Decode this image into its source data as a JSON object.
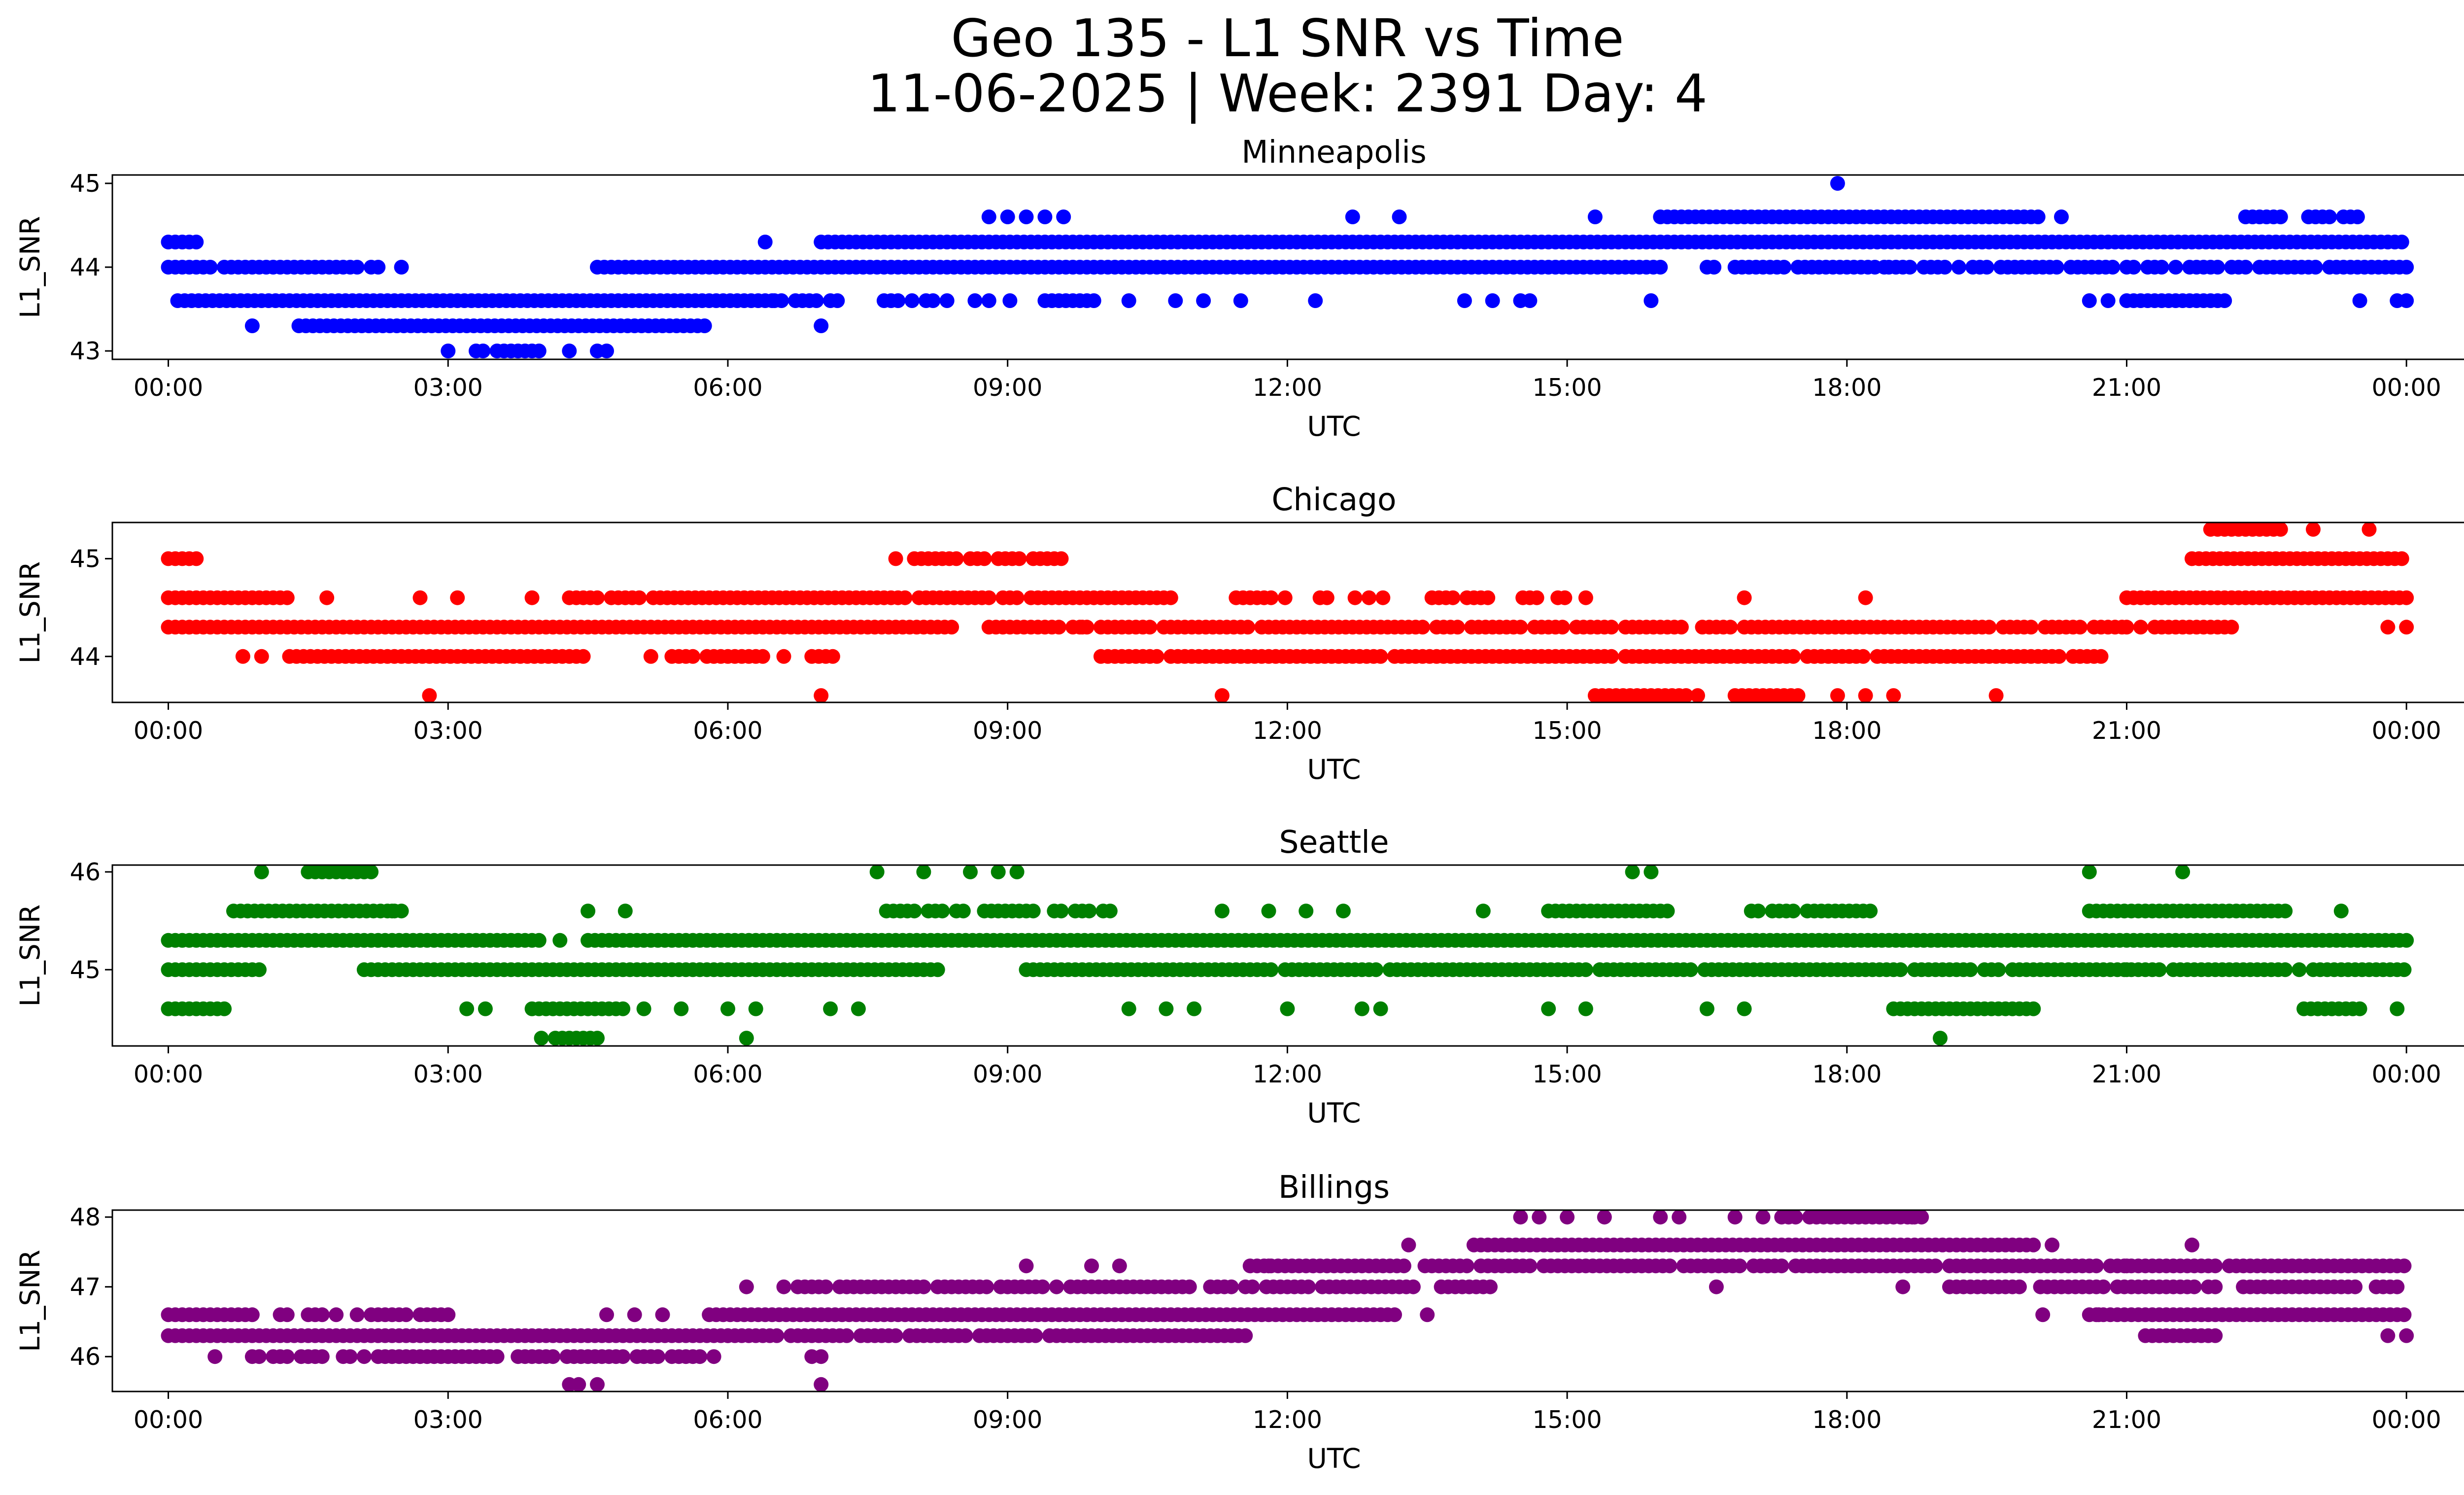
{
  "figure": {
    "title_line1": "Geo 135 - L1 SNR vs Time",
    "title_line2": "11-06-2025 | Week: 2391 Day: 4"
  },
  "chart_data": [
    {
      "type": "scatter",
      "title": "Minneapolis",
      "color": "#0000ff",
      "xlabel": "UTC",
      "ylabel": "L1_SNR",
      "xlim_hours": [
        -0.6,
        25.6
      ],
      "ylim": [
        42.9,
        45.1
      ],
      "xticks": [
        "00:00",
        "03:00",
        "06:00",
        "09:00",
        "12:00",
        "15:00",
        "18:00",
        "21:00",
        "00:00"
      ],
      "yticks": [
        43,
        44,
        45
      ],
      "bands": [
        {
          "y": 44.3,
          "start": 0.0,
          "end": 0.3,
          "density": 1.0
        },
        {
          "y": 44.0,
          "start": 0.0,
          "end": 2.3,
          "density": 0.8
        },
        {
          "y": 43.6,
          "start": 0.1,
          "end": 6.5,
          "density": 1.0
        },
        {
          "y": 43.3,
          "start": 1.4,
          "end": 5.8,
          "density": 1.0
        },
        {
          "y": 44.0,
          "start": 4.6,
          "end": 16.0,
          "density": 1.0
        },
        {
          "y": 43.6,
          "start": 6.5,
          "end": 7.2,
          "density": 0.9
        },
        {
          "y": 44.3,
          "start": 7.0,
          "end": 24.0,
          "density": 1.0
        },
        {
          "y": 43.6,
          "start": 7.6,
          "end": 10.0,
          "density": 0.5
        },
        {
          "y": 44.0,
          "start": 16.5,
          "end": 24.0,
          "density": 0.85
        },
        {
          "y": 44.6,
          "start": 16.0,
          "end": 20.1,
          "density": 1.0
        },
        {
          "y": 44.6,
          "start": 22.2,
          "end": 23.6,
          "density": 0.75
        },
        {
          "y": 43.6,
          "start": 21.0,
          "end": 22.1,
          "density": 1.0
        },
        {
          "y": 43.0,
          "start": 3.3,
          "end": 4.0,
          "density": 0.9
        }
      ],
      "points": [
        [
          0.9,
          43.3
        ],
        [
          2.5,
          44.0
        ],
        [
          3.0,
          43.0
        ],
        [
          4.3,
          43.0
        ],
        [
          4.6,
          43.0
        ],
        [
          4.7,
          43.0
        ],
        [
          6.4,
          44.3
        ],
        [
          7.0,
          43.3
        ],
        [
          8.8,
          44.6
        ],
        [
          9.0,
          44.6
        ],
        [
          9.2,
          44.6
        ],
        [
          9.4,
          44.6
        ],
        [
          9.6,
          44.6
        ],
        [
          8.8,
          43.6
        ],
        [
          10.3,
          43.6
        ],
        [
          10.8,
          43.6
        ],
        [
          11.1,
          43.6
        ],
        [
          11.5,
          43.6
        ],
        [
          12.3,
          43.6
        ],
        [
          12.7,
          44.6
        ],
        [
          13.2,
          44.6
        ],
        [
          13.9,
          43.6
        ],
        [
          14.2,
          43.6
        ],
        [
          14.5,
          43.6
        ],
        [
          14.6,
          43.6
        ],
        [
          15.3,
          44.6
        ],
        [
          15.9,
          43.6
        ],
        [
          17.9,
          45.0
        ],
        [
          18.4,
          44.0
        ],
        [
          20.3,
          44.6
        ],
        [
          20.6,
          43.6
        ],
        [
          20.8,
          43.6
        ],
        [
          23.5,
          43.6
        ],
        [
          23.9,
          43.6
        ],
        [
          24.0,
          43.6
        ]
      ]
    },
    {
      "type": "scatter",
      "title": "Chicago",
      "color": "#ff0000",
      "xlabel": "UTC",
      "ylabel": "L1_SNR",
      "xlim_hours": [
        -0.6,
        25.6
      ],
      "ylim": [
        43.53,
        45.37
      ],
      "xticks": [
        "00:00",
        "03:00",
        "06:00",
        "09:00",
        "12:00",
        "15:00",
        "18:00",
        "21:00",
        "00:00"
      ],
      "yticks": [
        44,
        45
      ],
      "bands": [
        {
          "y": 45.0,
          "start": 0.0,
          "end": 0.3,
          "density": 1.0
        },
        {
          "y": 44.6,
          "start": 0.0,
          "end": 1.3,
          "density": 1.0
        },
        {
          "y": 44.3,
          "start": 0.0,
          "end": 8.4,
          "density": 1.0
        },
        {
          "y": 44.0,
          "start": 1.3,
          "end": 4.5,
          "density": 1.0
        },
        {
          "y": 44.6,
          "start": 4.3,
          "end": 10.8,
          "density": 0.9
        },
        {
          "y": 44.0,
          "start": 5.1,
          "end": 7.3,
          "density": 0.7
        },
        {
          "y": 45.0,
          "start": 8.0,
          "end": 9.6,
          "density": 0.9
        },
        {
          "y": 44.3,
          "start": 8.8,
          "end": 21.0,
          "density": 0.9
        },
        {
          "y": 44.0,
          "start": 10.0,
          "end": 20.8,
          "density": 0.95
        },
        {
          "y": 44.6,
          "start": 11.3,
          "end": 15.2,
          "density": 0.6
        },
        {
          "y": 43.6,
          "start": 15.3,
          "end": 16.3,
          "density": 1.0
        },
        {
          "y": 43.6,
          "start": 16.8,
          "end": 17.5,
          "density": 1.0
        },
        {
          "y": 44.6,
          "start": 21.0,
          "end": 24.0,
          "density": 1.0
        },
        {
          "y": 45.0,
          "start": 21.7,
          "end": 24.0,
          "density": 1.0
        },
        {
          "y": 45.3,
          "start": 21.9,
          "end": 22.7,
          "density": 1.0
        },
        {
          "y": 44.3,
          "start": 21.0,
          "end": 22.2,
          "density": 0.9
        }
      ],
      "points": [
        [
          0.8,
          44.0
        ],
        [
          1.0,
          44.0
        ],
        [
          1.7,
          44.6
        ],
        [
          2.7,
          44.6
        ],
        [
          2.8,
          43.6
        ],
        [
          3.1,
          44.6
        ],
        [
          3.9,
          44.6
        ],
        [
          7.0,
          43.6
        ],
        [
          7.8,
          45.0
        ],
        [
          9.8,
          44.3
        ],
        [
          11.3,
          43.6
        ],
        [
          16.4,
          43.6
        ],
        [
          16.9,
          44.6
        ],
        [
          17.9,
          43.6
        ],
        [
          18.2,
          43.6
        ],
        [
          18.5,
          43.6
        ],
        [
          18.2,
          44.6
        ],
        [
          19.6,
          43.6
        ],
        [
          23.0,
          45.3
        ],
        [
          23.6,
          45.3
        ],
        [
          23.8,
          44.3
        ],
        [
          24.0,
          44.3
        ]
      ]
    },
    {
      "type": "scatter",
      "title": "Seattle",
      "color": "#008000",
      "xlabel": "UTC",
      "ylabel": "L1_SNR",
      "xlim_hours": [
        -0.6,
        25.6
      ],
      "ylim": [
        44.22,
        46.07
      ],
      "xticks": [
        "00:00",
        "03:00",
        "06:00",
        "09:00",
        "12:00",
        "15:00",
        "18:00",
        "21:00",
        "00:00"
      ],
      "yticks": [
        45,
        46
      ],
      "bands": [
        {
          "y": 45.3,
          "start": 0.0,
          "end": 4.0,
          "density": 1.0
        },
        {
          "y": 45.0,
          "start": 0.0,
          "end": 1.0,
          "density": 1.0
        },
        {
          "y": 44.6,
          "start": 0.0,
          "end": 0.6,
          "density": 1.0
        },
        {
          "y": 45.6,
          "start": 0.7,
          "end": 2.5,
          "density": 1.0
        },
        {
          "y": 46.0,
          "start": 1.5,
          "end": 2.2,
          "density": 1.0
        },
        {
          "y": 45.0,
          "start": 2.1,
          "end": 8.3,
          "density": 1.0
        },
        {
          "y": 45.3,
          "start": 4.5,
          "end": 24.0,
          "density": 1.0
        },
        {
          "y": 44.6,
          "start": 3.9,
          "end": 4.9,
          "density": 1.0
        },
        {
          "y": 45.6,
          "start": 7.7,
          "end": 10.1,
          "density": 0.8
        },
        {
          "y": 45.0,
          "start": 9.2,
          "end": 24.0,
          "density": 0.95
        },
        {
          "y": 45.6,
          "start": 14.8,
          "end": 16.1,
          "density": 0.9
        },
        {
          "y": 45.6,
          "start": 16.9,
          "end": 18.3,
          "density": 0.8
        },
        {
          "y": 44.6,
          "start": 18.5,
          "end": 20.0,
          "density": 1.0
        },
        {
          "y": 45.6,
          "start": 20.6,
          "end": 22.7,
          "density": 1.0
        },
        {
          "y": 44.6,
          "start": 22.9,
          "end": 23.5,
          "density": 1.0
        },
        {
          "y": 44.3,
          "start": 4.0,
          "end": 4.6,
          "density": 0.8
        }
      ],
      "points": [
        [
          1.0,
          46.0
        ],
        [
          2.4,
          45.6
        ],
        [
          3.2,
          44.6
        ],
        [
          3.4,
          44.6
        ],
        [
          4.2,
          45.3
        ],
        [
          4.5,
          45.6
        ],
        [
          4.9,
          45.6
        ],
        [
          5.1,
          44.6
        ],
        [
          5.5,
          44.6
        ],
        [
          6.2,
          44.3
        ],
        [
          6.0,
          44.6
        ],
        [
          6.3,
          44.6
        ],
        [
          7.1,
          44.6
        ],
        [
          7.4,
          44.6
        ],
        [
          7.6,
          46.0
        ],
        [
          8.1,
          46.0
        ],
        [
          8.6,
          46.0
        ],
        [
          8.9,
          46.0
        ],
        [
          9.1,
          46.0
        ],
        [
          10.3,
          44.6
        ],
        [
          10.7,
          44.6
        ],
        [
          11.0,
          44.6
        ],
        [
          11.3,
          45.6
        ],
        [
          11.8,
          45.6
        ],
        [
          12.0,
          44.6
        ],
        [
          12.2,
          45.6
        ],
        [
          12.6,
          45.6
        ],
        [
          12.8,
          44.6
        ],
        [
          13.0,
          44.6
        ],
        [
          14.1,
          45.6
        ],
        [
          14.8,
          44.6
        ],
        [
          15.2,
          44.6
        ],
        [
          15.7,
          46.0
        ],
        [
          15.9,
          46.0
        ],
        [
          16.5,
          44.6
        ],
        [
          16.9,
          44.6
        ],
        [
          19.0,
          44.3
        ],
        [
          20.6,
          46.0
        ],
        [
          21.6,
          46.0
        ],
        [
          21.0,
          45.0
        ],
        [
          23.9,
          44.6
        ],
        [
          23.3,
          45.6
        ]
      ]
    },
    {
      "type": "scatter",
      "title": "Billings",
      "color": "#800080",
      "xlabel": "UTC",
      "ylabel": "L1_SNR",
      "xlim_hours": [
        -0.6,
        25.6
      ],
      "ylim": [
        45.5,
        48.1
      ],
      "xticks": [
        "00:00",
        "03:00",
        "06:00",
        "09:00",
        "12:00",
        "15:00",
        "18:00",
        "21:00",
        "00:00"
      ],
      "yticks": [
        46,
        47,
        48
      ],
      "bands": [
        {
          "y": 46.6,
          "start": 0.0,
          "end": 0.9,
          "density": 1.0
        },
        {
          "y": 46.3,
          "start": 0.0,
          "end": 6.0,
          "density": 1.0
        },
        {
          "y": 46.0,
          "start": 0.9,
          "end": 5.9,
          "density": 0.9
        },
        {
          "y": 46.6,
          "start": 1.2,
          "end": 3.2,
          "density": 0.6
        },
        {
          "y": 46.6,
          "start": 5.8,
          "end": 13.2,
          "density": 1.0
        },
        {
          "y": 46.3,
          "start": 6.0,
          "end": 11.6,
          "density": 0.9
        },
        {
          "y": 47.0,
          "start": 6.6,
          "end": 14.2,
          "density": 0.9
        },
        {
          "y": 47.3,
          "start": 11.6,
          "end": 24.0,
          "density": 0.95
        },
        {
          "y": 47.6,
          "start": 14.0,
          "end": 20.0,
          "density": 1.0
        },
        {
          "y": 48.0,
          "start": 17.3,
          "end": 18.8,
          "density": 0.9
        },
        {
          "y": 47.0,
          "start": 19.1,
          "end": 24.0,
          "density": 0.9
        },
        {
          "y": 46.6,
          "start": 20.6,
          "end": 24.0,
          "density": 1.0
        },
        {
          "y": 46.3,
          "start": 21.2,
          "end": 22.0,
          "density": 1.0
        }
      ],
      "points": [
        [
          0.5,
          46.0
        ],
        [
          4.3,
          45.6
        ],
        [
          4.4,
          45.6
        ],
        [
          4.6,
          45.6
        ],
        [
          4.7,
          46.6
        ],
        [
          5.0,
          46.6
        ],
        [
          5.3,
          46.6
        ],
        [
          6.2,
          47.0
        ],
        [
          7.0,
          45.6
        ],
        [
          6.9,
          46.0
        ],
        [
          7.0,
          46.0
        ],
        [
          9.2,
          47.3
        ],
        [
          9.9,
          47.3
        ],
        [
          10.2,
          47.3
        ],
        [
          11.8,
          47.3
        ],
        [
          13.3,
          47.6
        ],
        [
          13.5,
          46.6
        ],
        [
          14.5,
          48.0
        ],
        [
          14.7,
          48.0
        ],
        [
          15.0,
          48.0
        ],
        [
          15.4,
          48.0
        ],
        [
          16.0,
          48.0
        ],
        [
          16.2,
          48.0
        ],
        [
          16.6,
          47.0
        ],
        [
          16.8,
          48.0
        ],
        [
          17.1,
          48.0
        ],
        [
          18.6,
          47.0
        ],
        [
          18.7,
          48.0
        ],
        [
          20.2,
          47.6
        ],
        [
          20.1,
          46.6
        ],
        [
          20.7,
          46.6
        ],
        [
          21.7,
          47.6
        ],
        [
          21.0,
          47.3
        ],
        [
          23.8,
          46.3
        ],
        [
          24.0,
          46.3
        ]
      ]
    }
  ]
}
